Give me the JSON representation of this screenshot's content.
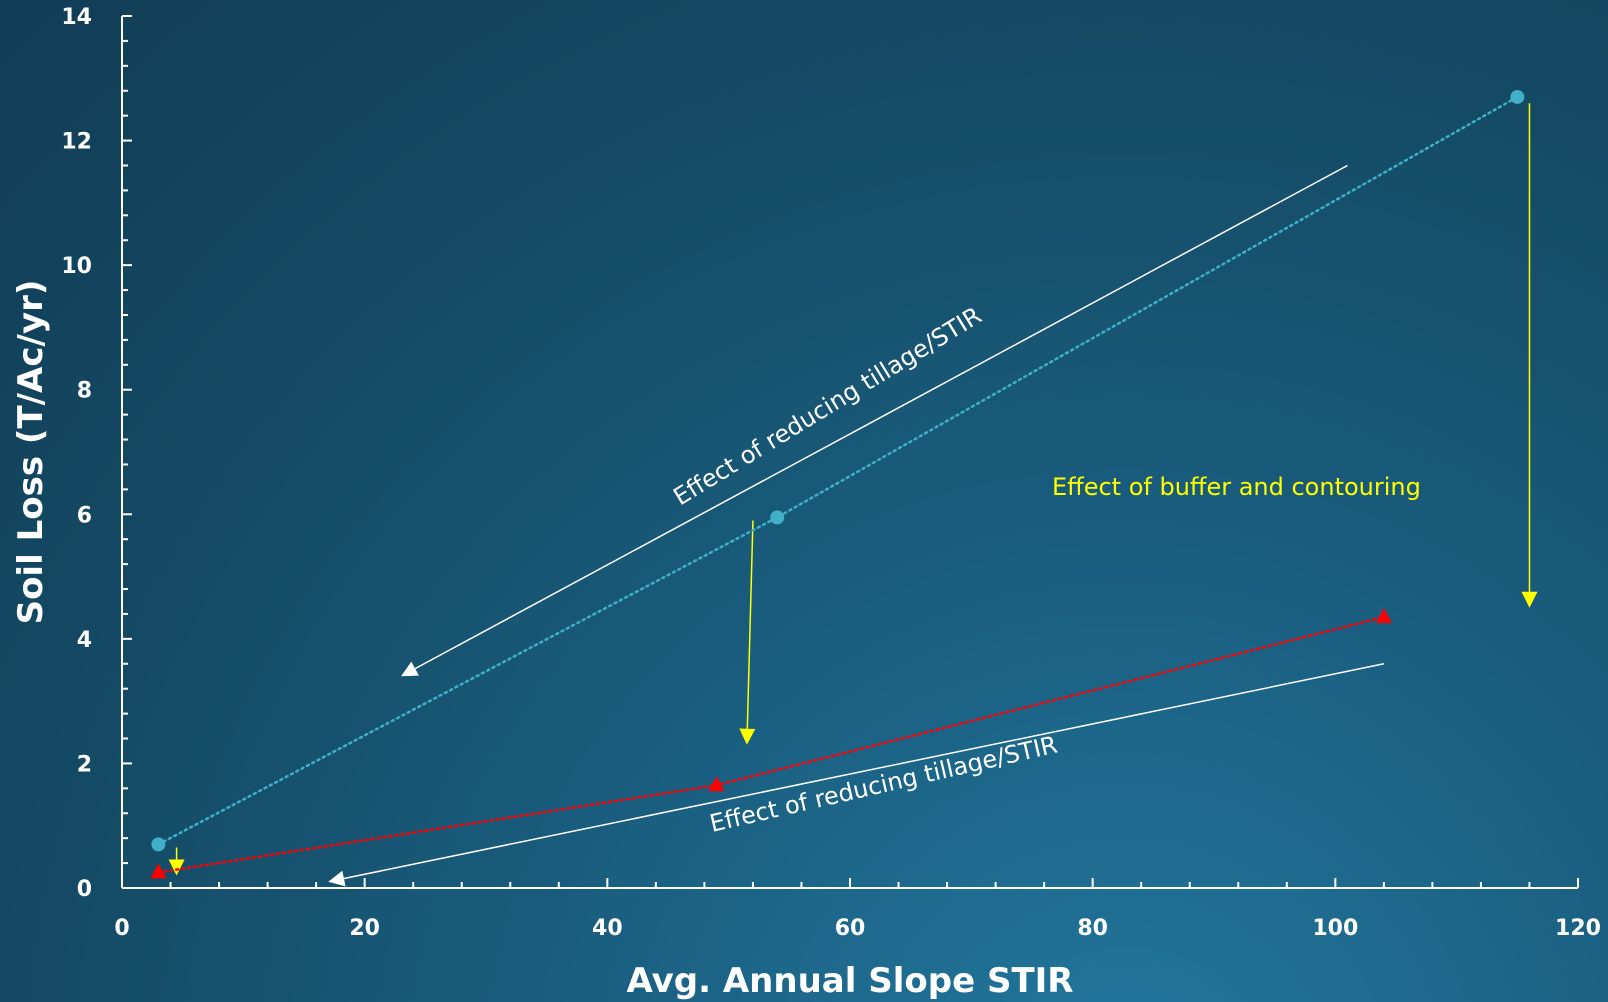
{
  "chart_data": {
    "type": "scatter",
    "xlabel": "Avg. Annual Slope STIR",
    "ylabel": "Soil Loss (T/Ac/yr)",
    "xlim": [
      0,
      120
    ],
    "ylim": [
      0,
      14
    ],
    "x_ticks": [
      0,
      20,
      40,
      60,
      80,
      100,
      120
    ],
    "y_ticks": [
      0,
      2,
      4,
      6,
      8,
      10,
      12,
      14
    ],
    "grid": false,
    "series": [
      {
        "marker": "circle",
        "line": "dotted",
        "color": "#3fb0c8",
        "points": [
          {
            "x": 3,
            "y": 0.7
          },
          {
            "x": 54,
            "y": 5.95
          },
          {
            "x": 115,
            "y": 12.7
          }
        ]
      },
      {
        "marker": "triangle",
        "line": "dotted",
        "color": "#ff0000",
        "points": [
          {
            "x": 3,
            "y": 0.25
          },
          {
            "x": 49,
            "y": 1.65
          },
          {
            "x": 104,
            "y": 4.35
          }
        ]
      }
    ],
    "annotations": [
      {
        "text": "Effect of reducing tillage/STIR",
        "color": "#ffffff"
      },
      {
        "text": "Effect of reducing tillage/STIR",
        "color": "#ffffff"
      },
      {
        "text": "Effect of buffer and contouring",
        "color": "#ffff00"
      }
    ],
    "arrows": [
      {
        "color": "#ffffff",
        "from": {
          "x": 101,
          "y": 11.6
        },
        "to": {
          "x": 23,
          "y": 3.4
        }
      },
      {
        "color": "#ffffff",
        "from": {
          "x": 104,
          "y": 3.6
        },
        "to": {
          "x": 17,
          "y": 0.1
        }
      },
      {
        "color": "#ffff00",
        "from": {
          "x": 116,
          "y": 12.6
        },
        "to": {
          "x": 116,
          "y": 4.5
        }
      },
      {
        "color": "#ffff00",
        "from": {
          "x": 52,
          "y": 5.9
        },
        "to": {
          "x": 51.5,
          "y": 2.3
        }
      },
      {
        "color": "#ffff00",
        "from": {
          "x": 4.5,
          "y": 0.65
        },
        "to": {
          "x": 4.5,
          "y": 0.2
        }
      }
    ]
  }
}
